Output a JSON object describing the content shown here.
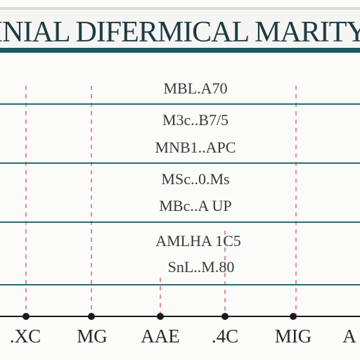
{
  "title": "INIAL DIFERMICAL MARITY",
  "row_labels": [
    "MBL.A70",
    "M3c..B7/5",
    "MNB1..APC",
    "MSc..0.Ms",
    "MBc..A UP",
    "AMLHA 1C5",
    "SnL..M.80"
  ],
  "axis_labels": [
    ".XC",
    "MG",
    "AAE",
    ".4C",
    "MIG",
    "A"
  ],
  "colors": {
    "title_band": "#1c5a66",
    "title_bg": "#f5f5f3",
    "row_line": "#2e6b74",
    "dashed_line": "#e58c8c",
    "axis": "#1a1a1a"
  }
}
